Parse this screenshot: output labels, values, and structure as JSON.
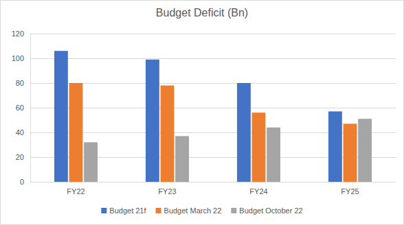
{
  "chart_data": {
    "type": "bar",
    "title": "Budget Deficit (Bn)",
    "categories": [
      "FY22",
      "FY23",
      "FY24",
      "FY25"
    ],
    "series": [
      {
        "name": "Budget 21f",
        "color": "#4472c4",
        "values": [
          106,
          99,
          80,
          57
        ]
      },
      {
        "name": "Budget March 22",
        "color": "#ed7d31",
        "values": [
          80,
          78,
          56,
          47
        ]
      },
      {
        "name": "Budget October 22",
        "color": "#a5a5a5",
        "values": [
          32,
          37,
          44,
          51
        ]
      }
    ],
    "ylim": [
      0,
      120
    ],
    "yticks": [
      0,
      20,
      40,
      60,
      80,
      100,
      120
    ],
    "grid": true,
    "legend": "bottom"
  }
}
